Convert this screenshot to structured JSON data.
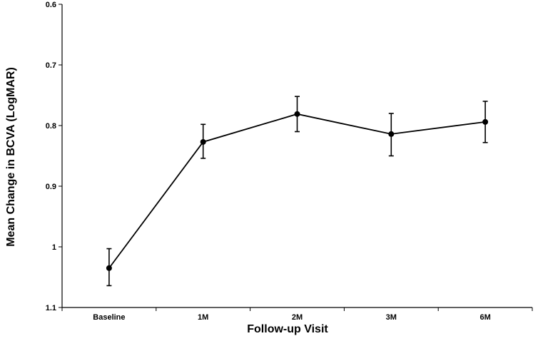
{
  "chart_data": {
    "type": "line",
    "title": "",
    "xlabel": "Follow-up Visit",
    "ylabel": "Mean Change in BCVA (LogMAR)",
    "categories": [
      "Baseline",
      "1M",
      "2M",
      "3M",
      "6M"
    ],
    "series": [
      {
        "values": [
          1.035,
          0.827,
          0.781,
          0.814,
          0.794
        ],
        "error_low": [
          1.003,
          0.798,
          0.752,
          0.78,
          0.76
        ],
        "error_high": [
          1.064,
          0.854,
          0.81,
          0.85,
          0.828
        ]
      }
    ],
    "ylim": [
      0.6,
      1.1
    ],
    "y_inverted": true,
    "yticks": [
      "0.6",
      "0.7",
      "0.8",
      "0.9",
      "1",
      "1.1"
    ],
    "grid": false,
    "legend": "none",
    "colors": {
      "line": "#000000",
      "marker": "#000000"
    }
  }
}
